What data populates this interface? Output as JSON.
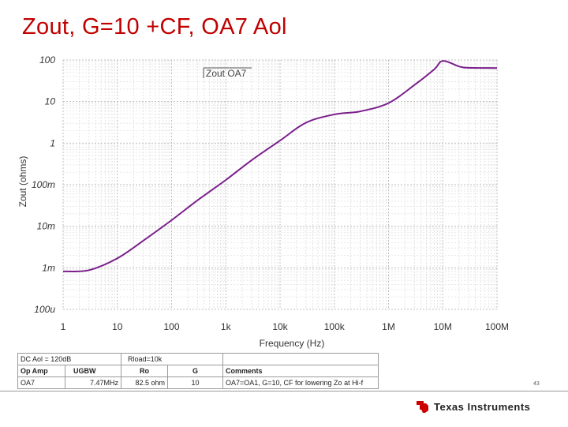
{
  "slide": {
    "title": "Zout, G=10 +CF, OA7 Aol",
    "page_number": "43"
  },
  "chart_data": {
    "type": "line",
    "title": "",
    "xlabel": "Frequency (Hz)",
    "ylabel": "Zout (ohms)",
    "x_scale": "log",
    "y_scale": "log",
    "xlim": [
      1,
      100000000
    ],
    "ylim": [
      0.0001,
      100
    ],
    "x_ticks": [
      1,
      10,
      100,
      1000,
      10000,
      100000,
      1000000,
      10000000,
      100000000
    ],
    "x_tick_labels": [
      "1",
      "10",
      "100",
      "1k",
      "10k",
      "100k",
      "1M",
      "10M",
      "100M"
    ],
    "y_ticks": [
      0.0001,
      0.001,
      0.01,
      0.1,
      1,
      10,
      100
    ],
    "y_tick_labels": [
      "100u",
      "1m",
      "10m",
      "100m",
      "1",
      "10",
      "100"
    ],
    "grid": true,
    "legend": "top-left",
    "series": [
      {
        "name": "Zout OA7",
        "color": "#7a1e8c",
        "x": [
          1,
          3,
          10,
          30,
          100,
          300,
          1000,
          3000,
          10000,
          30000,
          100000,
          300000,
          1000000,
          3000000,
          7000000,
          10000000,
          20000000,
          30000000,
          100000000
        ],
        "y": [
          0.00082,
          0.00088,
          0.0017,
          0.0045,
          0.014,
          0.042,
          0.13,
          0.39,
          1.15,
          3.1,
          4.9,
          5.8,
          9.2,
          25,
          60,
          95,
          70,
          65,
          64
        ]
      }
    ]
  },
  "table": {
    "header_row": [
      "DC Aol = 120dB",
      "",
      "Rload=10k",
      "",
      ""
    ],
    "columns": [
      "Op Amp",
      "UGBW",
      "Ro",
      "G",
      "Comments"
    ],
    "rows": [
      [
        "OA7",
        "7.47MHz",
        "82.5 ohm",
        "10",
        "OA7=OA1, G=10, CF for lowering Zo at Hi-f"
      ]
    ]
  },
  "footer": {
    "logo_text": "Texas Instruments",
    "logo_color": "#cc0000"
  }
}
